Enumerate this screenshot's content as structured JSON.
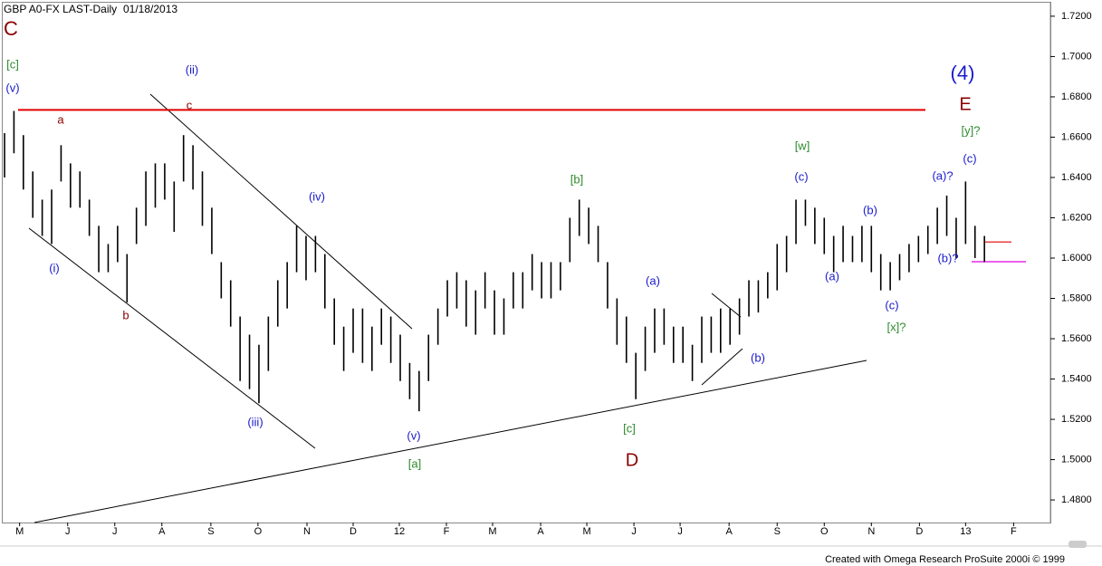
{
  "chart_data": {
    "type": "ohlc",
    "title": "GBP A0-FX LAST-Daily",
    "date": "01/18/2013",
    "footer": "Created with Omega Research ProSuite 2000i © 1999",
    "bar_color": "#000000",
    "xlim": [
      0,
      111
    ],
    "ylim": [
      1.4688,
      1.7267
    ],
    "xticks": [
      {
        "value": 1.6,
        "label": "M"
      },
      {
        "value": 6.7,
        "label": "J"
      },
      {
        "value": 11.7,
        "label": "J"
      },
      {
        "value": 16.7,
        "label": "A"
      },
      {
        "value": 21.9,
        "label": "S"
      },
      {
        "value": 26.9,
        "label": "O"
      },
      {
        "value": 32.1,
        "label": "N"
      },
      {
        "value": 37,
        "label": "D"
      },
      {
        "value": 41.9,
        "label": "12"
      },
      {
        "value": 46.9,
        "label": "F"
      },
      {
        "value": 51.8,
        "label": "M"
      },
      {
        "value": 56.9,
        "label": "A"
      },
      {
        "value": 61.8,
        "label": "M"
      },
      {
        "value": 66.8,
        "label": "J"
      },
      {
        "value": 71.7,
        "label": "J"
      },
      {
        "value": 76.9,
        "label": "A"
      },
      {
        "value": 82,
        "label": "S"
      },
      {
        "value": 87,
        "label": "O"
      },
      {
        "value": 92,
        "label": "N"
      },
      {
        "value": 97.1,
        "label": "D"
      },
      {
        "value": 102,
        "label": "13"
      },
      {
        "value": 107.1,
        "label": "F"
      }
    ],
    "yticks": [
      {
        "value": 1.48,
        "label": "1.4800"
      },
      {
        "value": 1.5,
        "label": "1.5000"
      },
      {
        "value": 1.52,
        "label": "1.5200"
      },
      {
        "value": 1.54,
        "label": "1.5400"
      },
      {
        "value": 1.56,
        "label": "1.5600"
      },
      {
        "value": 1.58,
        "label": "1.5800"
      },
      {
        "value": 1.6,
        "label": "1.6000"
      },
      {
        "value": 1.62,
        "label": "1.6200"
      },
      {
        "value": 1.64,
        "label": "1.6400"
      },
      {
        "value": 1.66,
        "label": "1.6600"
      },
      {
        "value": 1.68,
        "label": "1.6800"
      },
      {
        "value": 1.7,
        "label": "1.7000"
      },
      {
        "value": 1.72,
        "label": "1.7200"
      }
    ],
    "high": [
      1.662,
      1.673,
      1.661,
      1.643,
      1.629,
      1.634,
      1.656,
      1.647,
      1.643,
      1.629,
      1.616,
      1.607,
      1.616,
      1.602,
      1.625,
      1.643,
      1.647,
      1.647,
      1.638,
      1.661,
      1.656,
      1.643,
      1.625,
      1.598,
      1.589,
      1.571,
      1.562,
      1.557,
      1.571,
      1.589,
      1.598,
      1.616,
      1.611,
      1.611,
      1.602,
      1.58,
      1.566,
      1.575,
      1.575,
      1.566,
      1.575,
      1.571,
      1.562,
      1.548,
      1.544,
      1.562,
      1.575,
      1.589,
      1.593,
      1.589,
      1.584,
      1.593,
      1.584,
      1.58,
      1.593,
      1.593,
      1.602,
      1.598,
      1.598,
      1.598,
      1.62,
      1.629,
      1.625,
      1.616,
      1.598,
      1.58,
      1.571,
      1.553,
      1.566,
      1.575,
      1.575,
      1.566,
      1.566,
      1.557,
      1.571,
      1.571,
      1.575,
      1.575,
      1.58,
      1.589,
      1.589,
      1.593,
      1.607,
      1.611,
      1.629,
      1.629,
      1.625,
      1.62,
      1.611,
      1.616,
      1.611,
      1.616,
      1.616,
      1.602,
      1.598,
      1.602,
      1.607,
      1.611,
      1.616,
      1.625,
      1.631,
      1.62,
      1.638,
      1.616,
      1.611
    ],
    "low": [
      1.64,
      1.652,
      1.634,
      1.62,
      1.611,
      1.607,
      1.638,
      1.625,
      1.625,
      1.611,
      1.593,
      1.593,
      1.598,
      1.578,
      1.607,
      1.616,
      1.625,
      1.629,
      1.613,
      1.638,
      1.634,
      1.616,
      1.602,
      1.58,
      1.566,
      1.539,
      1.535,
      1.528,
      1.544,
      1.566,
      1.575,
      1.593,
      1.589,
      1.593,
      1.575,
      1.557,
      1.544,
      1.553,
      1.548,
      1.544,
      1.557,
      1.548,
      1.539,
      1.53,
      1.524,
      1.539,
      1.557,
      1.571,
      1.575,
      1.566,
      1.562,
      1.575,
      1.562,
      1.562,
      1.575,
      1.575,
      1.584,
      1.58,
      1.58,
      1.584,
      1.598,
      1.611,
      1.607,
      1.598,
      1.575,
      1.557,
      1.548,
      1.53,
      1.544,
      1.553,
      1.557,
      1.548,
      1.548,
      1.539,
      1.548,
      1.553,
      1.553,
      1.557,
      1.562,
      1.571,
      1.573,
      1.58,
      1.584,
      1.593,
      1.607,
      1.616,
      1.607,
      1.602,
      1.593,
      1.598,
      1.598,
      1.598,
      1.593,
      1.584,
      1.584,
      1.589,
      1.593,
      1.598,
      1.602,
      1.607,
      1.611,
      1.6,
      1.607,
      1.6,
      1.598
    ],
    "levels": [
      {
        "value": 1.6735,
        "color": "#e00000"
      },
      {
        "value": 1.608,
        "color": "#e00000"
      },
      {
        "value": 1.5982,
        "color": "#e000e0"
      }
    ],
    "annotations": [
      {
        "text": "C",
        "color": "#8b0000"
      },
      {
        "text": "[c]",
        "color": "#2e8b2e"
      },
      {
        "text": "(v)",
        "color": "#1a1acd"
      },
      {
        "text": "a",
        "color": "#8b0000"
      },
      {
        "text": "(ii)",
        "color": "#1a1acd"
      },
      {
        "text": "c",
        "color": "#8b0000"
      },
      {
        "text": "(i)",
        "color": "#1a1acd"
      },
      {
        "text": "b",
        "color": "#8b0000"
      },
      {
        "text": "(iv)",
        "color": "#1a1acd"
      },
      {
        "text": "(iii)",
        "color": "#1a1acd"
      },
      {
        "text": "(v)",
        "color": "#1a1acd"
      },
      {
        "text": "[a]",
        "color": "#2e8b2e"
      },
      {
        "text": "[b]",
        "color": "#2e8b2e"
      },
      {
        "text": "(a)",
        "color": "#1a1acd"
      },
      {
        "text": "[c]",
        "color": "#2e8b2e"
      },
      {
        "text": "D",
        "color": "#8b0000"
      },
      {
        "text": "(b)",
        "color": "#1a1acd"
      },
      {
        "text": "[w]",
        "color": "#2e8b2e"
      },
      {
        "text": "(c)",
        "color": "#1a1acd"
      },
      {
        "text": "(b)",
        "color": "#1a1acd"
      },
      {
        "text": "(a)",
        "color": "#1a1acd"
      },
      {
        "text": "(c)",
        "color": "#1a1acd"
      },
      {
        "text": "[x]?",
        "color": "#2e8b2e"
      },
      {
        "text": "(4)",
        "color": "#1a1acd"
      },
      {
        "text": "E",
        "color": "#8b0000"
      },
      {
        "text": "[y]?",
        "color": "#2e8b2e"
      },
      {
        "text": "(c)",
        "color": "#1a1acd"
      },
      {
        "text": "(a)?",
        "color": "#1a1acd"
      },
      {
        "text": "(b)?",
        "color": "#1a1acd"
      }
    ]
  }
}
